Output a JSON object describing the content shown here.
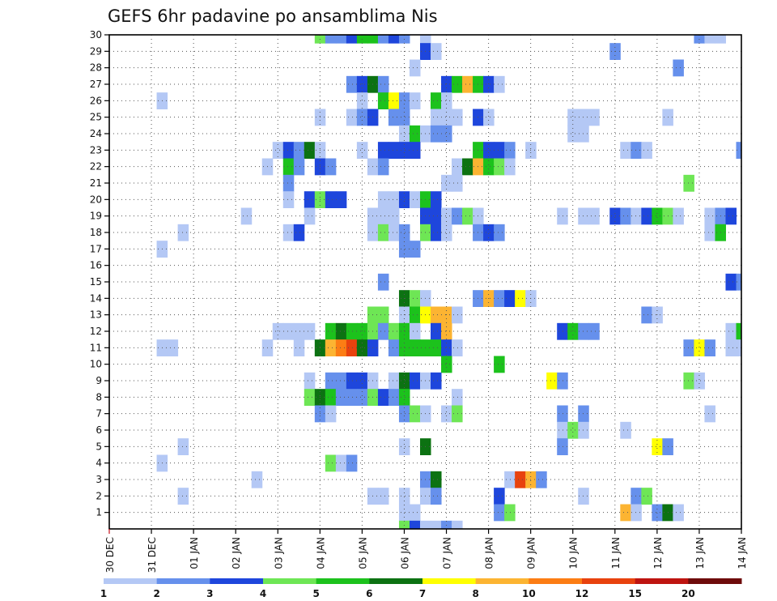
{
  "chart_data": {
    "type": "heatmap",
    "title": "GEFS 6hr padavine po ansamblima Nis",
    "x_tick_labels": [
      "30 DEC",
      "31 DEC",
      "01 JAN",
      "02 JAN",
      "03 JAN",
      "04 JAN",
      "05 JAN",
      "06 JAN",
      "07 JAN",
      "08 JAN",
      "09 JAN",
      "10 JAN",
      "11 JAN",
      "12 JAN",
      "13 JAN",
      "14 JAN"
    ],
    "y_tick_labels": [
      "1",
      "2",
      "3",
      "4",
      "5",
      "6",
      "7",
      "8",
      "9",
      "10",
      "11",
      "12",
      "13",
      "14",
      "15",
      "16",
      "17",
      "18",
      "19",
      "20",
      "21",
      "22",
      "23",
      "24",
      "25",
      "26",
      "27",
      "28",
      "29",
      "30"
    ],
    "x_steps_per_day": 4,
    "x_range_steps": [
      0,
      60
    ],
    "y_range": [
      0,
      30
    ],
    "grid": true,
    "color_scale": {
      "thresholds": [
        "1",
        "2",
        "3",
        "4",
        "5",
        "6",
        "7",
        "8",
        "10",
        "12",
        "15",
        "20"
      ],
      "colors": [
        "#b4c8f5",
        "#6690ec",
        "#1e46dc",
        "#6ee655",
        "#1cc21c",
        "#0c7212",
        "#ffff00",
        "#fcb432",
        "#fc7d14",
        "#e8420e",
        "#be1410",
        "#6e0b0b"
      ]
    },
    "cells": [
      [
        20,
        30,
        4
      ],
      [
        21,
        30,
        2
      ],
      [
        22,
        30,
        2
      ],
      [
        23,
        30,
        3
      ],
      [
        24,
        30,
        5
      ],
      [
        25,
        30,
        5
      ],
      [
        26,
        30,
        2
      ],
      [
        27,
        30,
        3
      ],
      [
        28,
        30,
        2
      ],
      [
        30,
        30,
        1
      ],
      [
        56,
        30,
        2
      ],
      [
        57,
        30,
        1
      ],
      [
        58,
        30,
        1
      ],
      [
        30,
        29,
        3
      ],
      [
        31,
        29,
        1
      ],
      [
        48,
        29,
        2
      ],
      [
        29,
        28,
        1
      ],
      [
        54,
        28,
        2
      ],
      [
        23,
        27,
        2
      ],
      [
        24,
        27,
        3
      ],
      [
        25,
        27,
        6
      ],
      [
        26,
        27,
        2
      ],
      [
        32,
        27,
        3
      ],
      [
        33,
        27,
        5
      ],
      [
        34,
        27,
        8
      ],
      [
        35,
        27,
        5
      ],
      [
        36,
        27,
        3
      ],
      [
        37,
        27,
        1
      ],
      [
        5,
        26,
        1
      ],
      [
        24,
        26,
        1
      ],
      [
        26,
        26,
        5
      ],
      [
        27,
        26,
        7
      ],
      [
        28,
        26,
        2
      ],
      [
        29,
        26,
        1
      ],
      [
        31,
        26,
        5
      ],
      [
        32,
        26,
        1
      ],
      [
        20,
        25,
        1
      ],
      [
        23,
        25,
        1
      ],
      [
        24,
        25,
        2
      ],
      [
        25,
        25,
        3
      ],
      [
        27,
        25,
        2
      ],
      [
        28,
        25,
        2
      ],
      [
        31,
        25,
        1
      ],
      [
        32,
        25,
        1
      ],
      [
        33,
        25,
        1
      ],
      [
        35,
        25,
        3
      ],
      [
        36,
        25,
        1
      ],
      [
        44,
        25,
        1
      ],
      [
        45,
        25,
        1
      ],
      [
        46,
        25,
        1
      ],
      [
        53,
        25,
        1
      ],
      [
        28,
        24,
        1
      ],
      [
        29,
        24,
        5
      ],
      [
        30,
        24,
        1
      ],
      [
        31,
        24,
        2
      ],
      [
        32,
        24,
        2
      ],
      [
        44,
        24,
        1
      ],
      [
        45,
        24,
        1
      ],
      [
        16,
        23,
        1
      ],
      [
        17,
        23,
        3
      ],
      [
        18,
        23,
        2
      ],
      [
        19,
        23,
        6
      ],
      [
        20,
        23,
        1
      ],
      [
        24,
        23,
        1
      ],
      [
        26,
        23,
        3
      ],
      [
        27,
        23,
        3
      ],
      [
        28,
        23,
        3
      ],
      [
        29,
        23,
        3
      ],
      [
        35,
        23,
        5
      ],
      [
        36,
        23,
        3
      ],
      [
        37,
        23,
        3
      ],
      [
        38,
        23,
        2
      ],
      [
        40,
        23,
        1
      ],
      [
        49,
        23,
        1
      ],
      [
        50,
        23,
        2
      ],
      [
        51,
        23,
        1
      ],
      [
        60,
        23,
        2
      ],
      [
        15,
        22,
        1
      ],
      [
        17,
        22,
        5
      ],
      [
        18,
        22,
        2
      ],
      [
        20,
        22,
        3
      ],
      [
        21,
        22,
        2
      ],
      [
        25,
        22,
        1
      ],
      [
        26,
        22,
        2
      ],
      [
        33,
        22,
        1
      ],
      [
        34,
        22,
        6
      ],
      [
        35,
        22,
        8
      ],
      [
        36,
        22,
        5
      ],
      [
        37,
        22,
        4
      ],
      [
        38,
        22,
        1
      ],
      [
        17,
        21,
        2
      ],
      [
        32,
        21,
        1
      ],
      [
        33,
        21,
        1
      ],
      [
        55,
        21,
        4
      ],
      [
        17,
        20,
        1
      ],
      [
        19,
        20,
        3
      ],
      [
        20,
        20,
        4
      ],
      [
        21,
        20,
        3
      ],
      [
        22,
        20,
        3
      ],
      [
        26,
        20,
        1
      ],
      [
        27,
        20,
        1
      ],
      [
        28,
        20,
        3
      ],
      [
        29,
        20,
        1
      ],
      [
        30,
        20,
        5
      ],
      [
        31,
        20,
        3
      ],
      [
        13,
        19,
        1
      ],
      [
        19,
        19,
        1
      ],
      [
        25,
        19,
        1
      ],
      [
        26,
        19,
        1
      ],
      [
        27,
        19,
        1
      ],
      [
        30,
        19,
        3
      ],
      [
        31,
        19,
        3
      ],
      [
        32,
        19,
        1
      ],
      [
        33,
        19,
        2
      ],
      [
        34,
        19,
        4
      ],
      [
        35,
        19,
        1
      ],
      [
        43,
        19,
        1
      ],
      [
        45,
        19,
        1
      ],
      [
        46,
        19,
        1
      ],
      [
        48,
        19,
        3
      ],
      [
        49,
        19,
        2
      ],
      [
        50,
        19,
        1
      ],
      [
        51,
        19,
        3
      ],
      [
        52,
        19,
        5
      ],
      [
        53,
        19,
        4
      ],
      [
        54,
        19,
        1
      ],
      [
        57,
        19,
        1
      ],
      [
        58,
        19,
        2
      ],
      [
        59,
        19,
        3
      ],
      [
        7,
        18,
        1
      ],
      [
        17,
        18,
        1
      ],
      [
        18,
        18,
        3
      ],
      [
        25,
        18,
        1
      ],
      [
        26,
        18,
        4
      ],
      [
        27,
        18,
        1
      ],
      [
        28,
        18,
        2
      ],
      [
        30,
        18,
        4
      ],
      [
        31,
        18,
        3
      ],
      [
        32,
        18,
        1
      ],
      [
        35,
        18,
        2
      ],
      [
        36,
        18,
        3
      ],
      [
        37,
        18,
        2
      ],
      [
        57,
        18,
        1
      ],
      [
        58,
        18,
        5
      ],
      [
        5,
        17,
        1
      ],
      [
        28,
        17,
        2
      ],
      [
        29,
        17,
        2
      ],
      [
        26,
        15,
        2
      ],
      [
        59,
        15,
        3
      ],
      [
        60,
        15,
        2
      ],
      [
        28,
        14,
        6
      ],
      [
        29,
        14,
        4
      ],
      [
        30,
        14,
        1
      ],
      [
        35,
        14,
        2
      ],
      [
        36,
        14,
        8
      ],
      [
        37,
        14,
        2
      ],
      [
        38,
        14,
        3
      ],
      [
        39,
        14,
        7
      ],
      [
        40,
        14,
        1
      ],
      [
        25,
        13,
        4
      ],
      [
        26,
        13,
        4
      ],
      [
        28,
        13,
        1
      ],
      [
        29,
        13,
        5
      ],
      [
        30,
        13,
        7
      ],
      [
        31,
        13,
        8
      ],
      [
        32,
        13,
        8
      ],
      [
        33,
        13,
        1
      ],
      [
        51,
        13,
        2
      ],
      [
        52,
        13,
        1
      ],
      [
        16,
        12,
        1
      ],
      [
        17,
        12,
        1
      ],
      [
        18,
        12,
        1
      ],
      [
        19,
        12,
        1
      ],
      [
        21,
        12,
        5
      ],
      [
        22,
        12,
        6
      ],
      [
        23,
        12,
        5
      ],
      [
        24,
        12,
        5
      ],
      [
        25,
        12,
        4
      ],
      [
        26,
        12,
        2
      ],
      [
        27,
        12,
        4
      ],
      [
        28,
        12,
        5
      ],
      [
        29,
        12,
        1
      ],
      [
        31,
        12,
        3
      ],
      [
        32,
        12,
        8
      ],
      [
        43,
        12,
        3
      ],
      [
        44,
        12,
        5
      ],
      [
        45,
        12,
        2
      ],
      [
        46,
        12,
        2
      ],
      [
        59,
        12,
        1
      ],
      [
        60,
        12,
        5
      ],
      [
        5,
        11,
        1
      ],
      [
        6,
        11,
        1
      ],
      [
        15,
        11,
        1
      ],
      [
        18,
        11,
        1
      ],
      [
        20,
        11,
        6
      ],
      [
        21,
        11,
        8
      ],
      [
        22,
        11,
        9
      ],
      [
        23,
        11,
        10
      ],
      [
        24,
        11,
        6
      ],
      [
        25,
        11,
        3
      ],
      [
        27,
        11,
        2
      ],
      [
        28,
        11,
        5
      ],
      [
        29,
        11,
        5
      ],
      [
        30,
        11,
        5
      ],
      [
        31,
        11,
        5
      ],
      [
        32,
        11,
        3
      ],
      [
        33,
        11,
        1
      ],
      [
        55,
        11,
        2
      ],
      [
        56,
        11,
        7
      ],
      [
        57,
        11,
        2
      ],
      [
        59,
        11,
        1
      ],
      [
        60,
        11,
        1
      ],
      [
        32,
        10,
        5
      ],
      [
        37,
        10,
        5
      ],
      [
        19,
        9,
        1
      ],
      [
        21,
        9,
        2
      ],
      [
        22,
        9,
        2
      ],
      [
        23,
        9,
        3
      ],
      [
        24,
        9,
        3
      ],
      [
        25,
        9,
        1
      ],
      [
        27,
        9,
        1
      ],
      [
        28,
        9,
        6
      ],
      [
        29,
        9,
        3
      ],
      [
        30,
        9,
        1
      ],
      [
        31,
        9,
        3
      ],
      [
        42,
        9,
        7
      ],
      [
        43,
        9,
        2
      ],
      [
        55,
        9,
        4
      ],
      [
        56,
        9,
        1
      ],
      [
        19,
        8,
        4
      ],
      [
        20,
        8,
        6
      ],
      [
        21,
        8,
        5
      ],
      [
        22,
        8,
        2
      ],
      [
        23,
        8,
        2
      ],
      [
        24,
        8,
        2
      ],
      [
        25,
        8,
        4
      ],
      [
        26,
        8,
        3
      ],
      [
        27,
        8,
        2
      ],
      [
        28,
        8,
        5
      ],
      [
        33,
        8,
        1
      ],
      [
        20,
        7,
        2
      ],
      [
        21,
        7,
        1
      ],
      [
        28,
        7,
        2
      ],
      [
        29,
        7,
        4
      ],
      [
        30,
        7,
        1
      ],
      [
        32,
        7,
        1
      ],
      [
        33,
        7,
        4
      ],
      [
        43,
        7,
        2
      ],
      [
        45,
        7,
        2
      ],
      [
        57,
        7,
        1
      ],
      [
        43,
        6,
        1
      ],
      [
        44,
        6,
        4
      ],
      [
        45,
        6,
        1
      ],
      [
        49,
        6,
        1
      ],
      [
        7,
        5,
        1
      ],
      [
        28,
        5,
        1
      ],
      [
        30,
        5,
        6
      ],
      [
        43,
        5,
        2
      ],
      [
        52,
        5,
        7
      ],
      [
        53,
        5,
        2
      ],
      [
        5,
        4,
        1
      ],
      [
        21,
        4,
        4
      ],
      [
        22,
        4,
        1
      ],
      [
        23,
        4,
        2
      ],
      [
        14,
        3,
        1
      ],
      [
        30,
        3,
        2
      ],
      [
        31,
        3,
        6
      ],
      [
        38,
        3,
        1
      ],
      [
        39,
        3,
        10
      ],
      [
        40,
        3,
        8
      ],
      [
        41,
        3,
        2
      ],
      [
        7,
        2,
        1
      ],
      [
        25,
        2,
        1
      ],
      [
        26,
        2,
        1
      ],
      [
        28,
        2,
        1
      ],
      [
        30,
        2,
        1
      ],
      [
        31,
        2,
        2
      ],
      [
        37,
        2,
        3
      ],
      [
        45,
        2,
        1
      ],
      [
        50,
        2,
        2
      ],
      [
        51,
        2,
        4
      ],
      [
        28,
        1,
        1
      ],
      [
        29,
        1,
        1
      ],
      [
        37,
        1,
        2
      ],
      [
        38,
        1,
        4
      ],
      [
        49,
        1,
        8
      ],
      [
        50,
        1,
        1
      ],
      [
        52,
        1,
        2
      ],
      [
        53,
        1,
        6
      ],
      [
        54,
        1,
        1
      ],
      [
        28,
        0,
        4
      ],
      [
        29,
        0,
        3
      ],
      [
        30,
        0,
        1
      ],
      [
        31,
        0,
        1
      ],
      [
        32,
        0,
        2
      ],
      [
        33,
        0,
        1
      ]
    ]
  }
}
